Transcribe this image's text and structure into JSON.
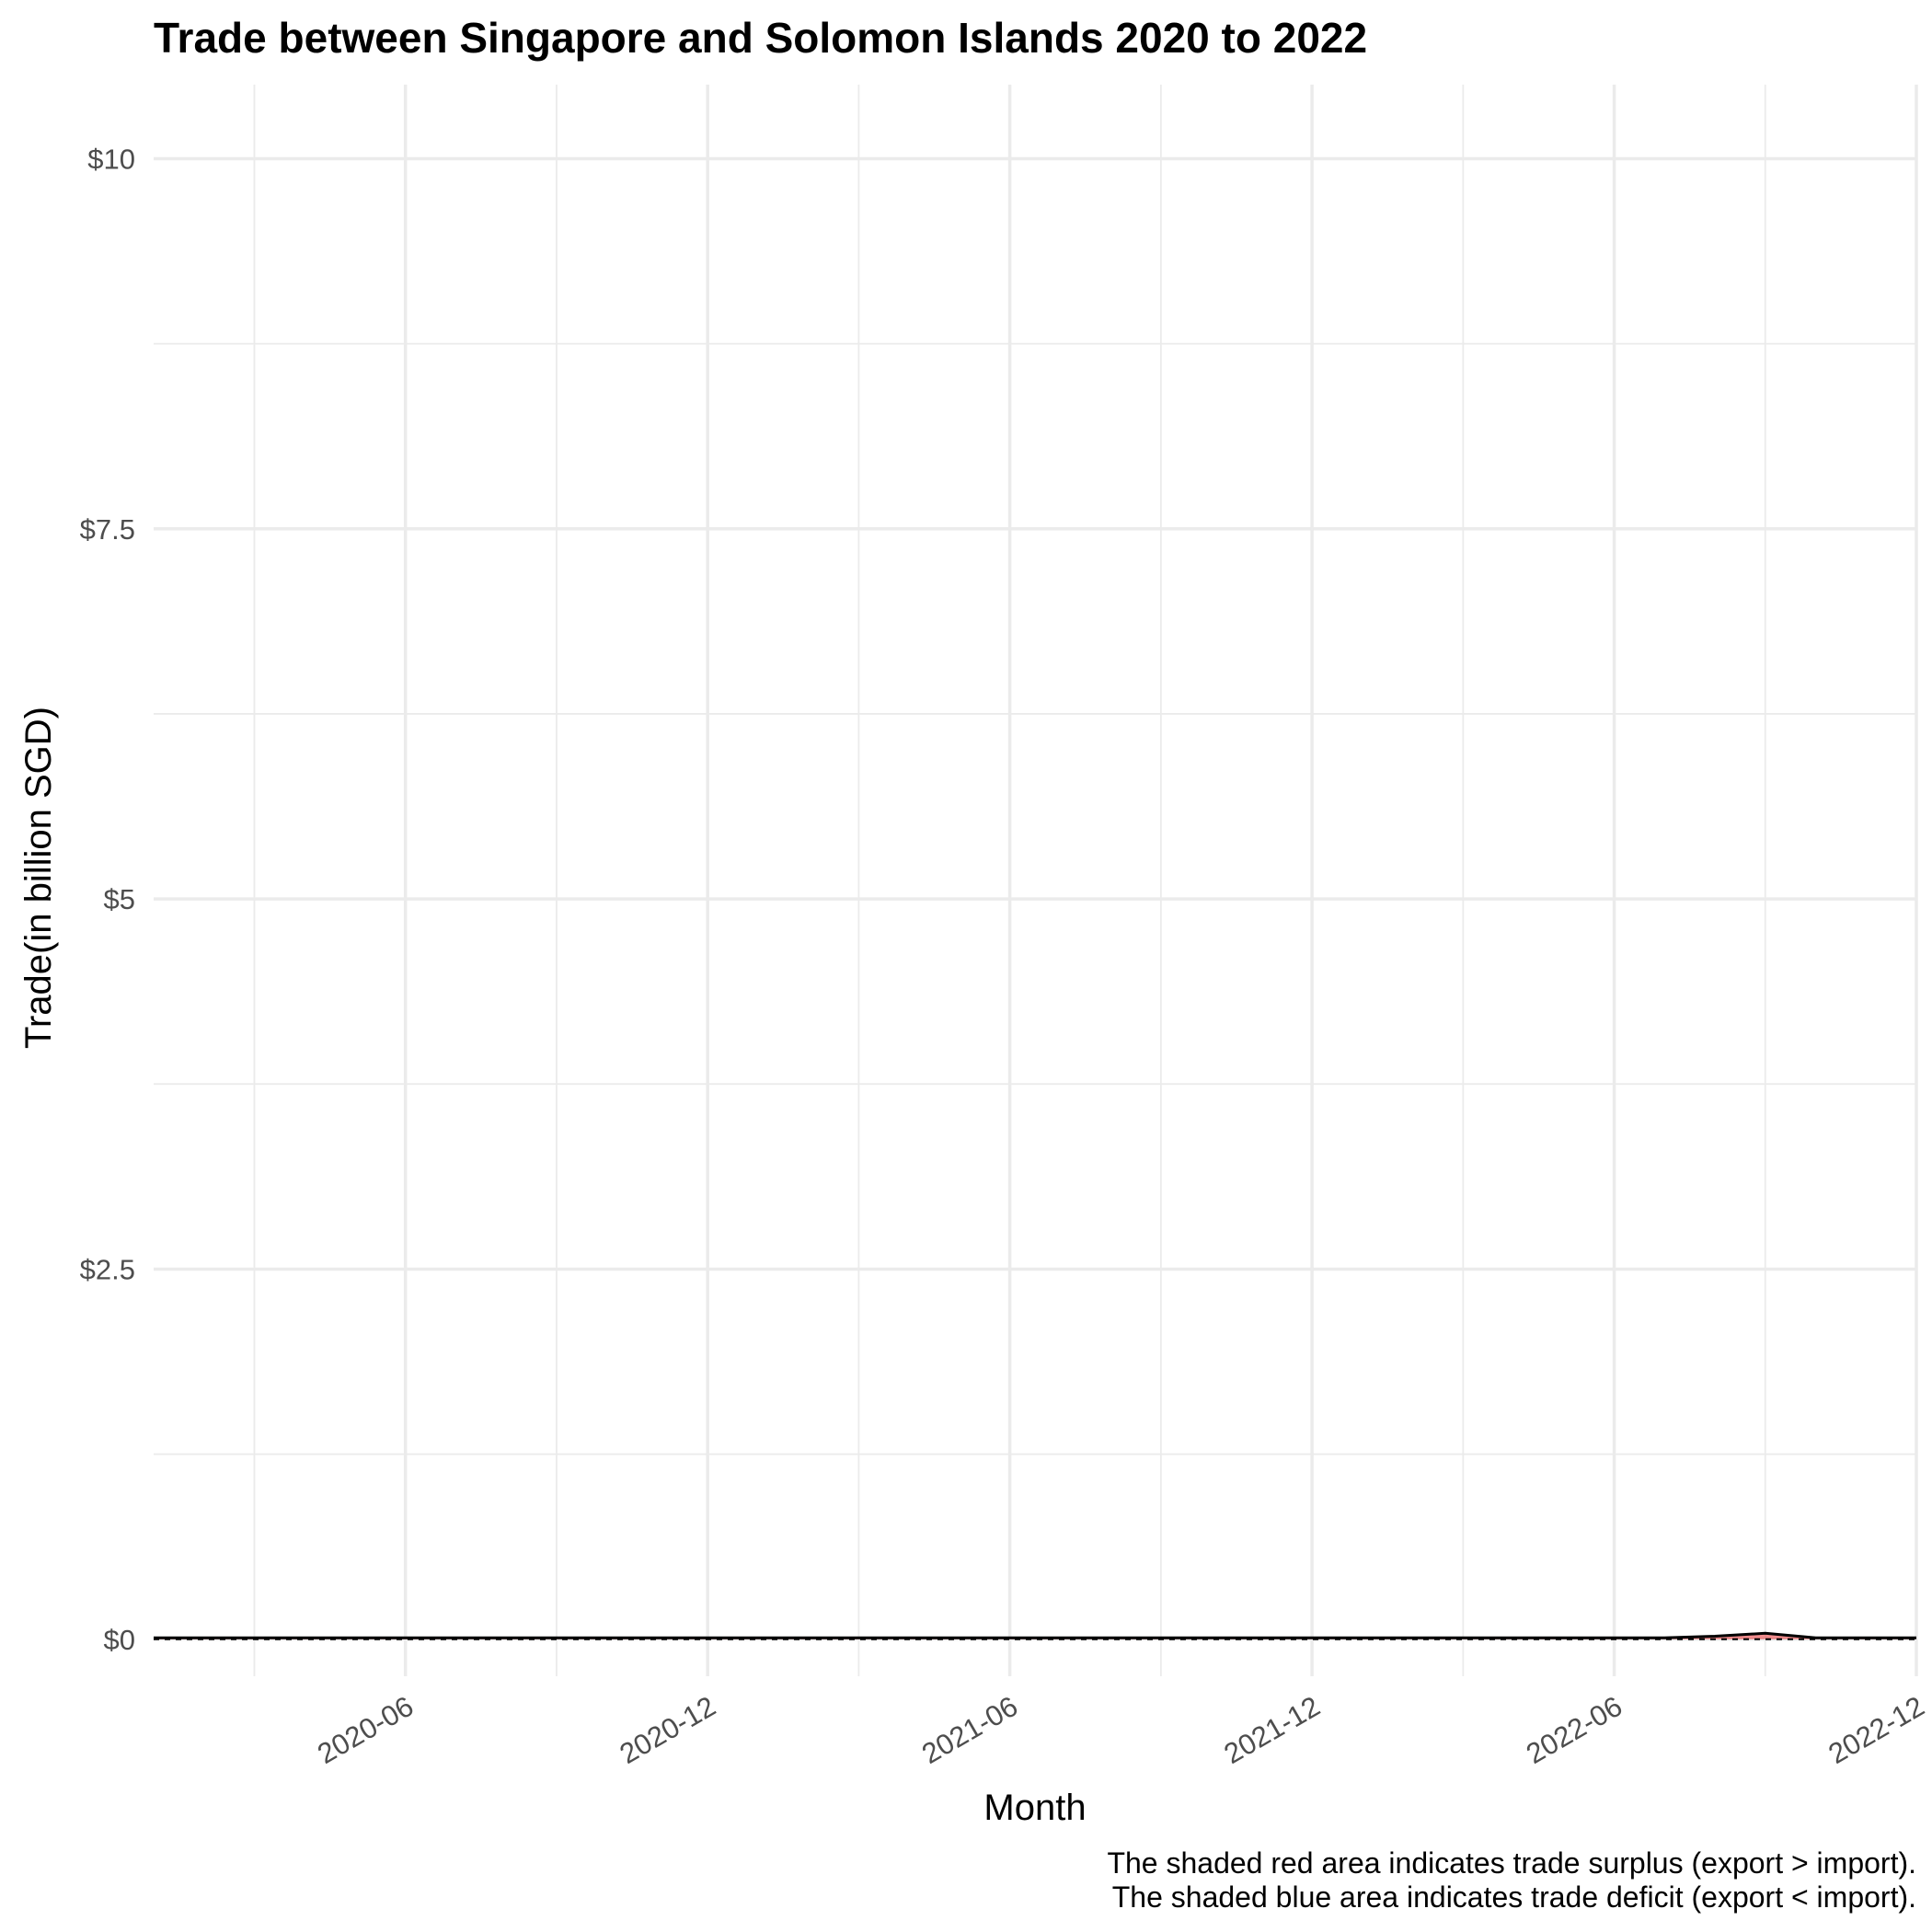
{
  "chart_data": {
    "type": "line",
    "title": "Trade between Singapore and Solomon Islands  2020 to 2022",
    "xlabel": "Month",
    "ylabel": "Trade(in billion SGD)",
    "ylim": [
      -0.25,
      10.5
    ],
    "y_ticks": [
      {
        "value": 0,
        "label": "$0"
      },
      {
        "value": 2.5,
        "label": "$2.5"
      },
      {
        "value": 5,
        "label": "$5"
      },
      {
        "value": 7.5,
        "label": "$7.5"
      },
      {
        "value": 10,
        "label": "$10"
      }
    ],
    "x_range": [
      "2020-01",
      "2022-12"
    ],
    "x_ticks": [
      "2020-06",
      "2020-12",
      "2021-06",
      "2021-12",
      "2022-06",
      "2022-12"
    ],
    "x_minor_ticks": [
      "2020-03",
      "2020-09",
      "2021-03",
      "2021-09",
      "2022-03",
      "2022-09"
    ],
    "grid": true,
    "legend": "none",
    "caption_lines": [
      "The shaded red area indicates trade surplus (export > import).",
      "The shaded blue area indicates trade deficit (export < import)."
    ],
    "months": [
      "2020-01",
      "2020-02",
      "2020-03",
      "2020-04",
      "2020-05",
      "2020-06",
      "2020-07",
      "2020-08",
      "2020-09",
      "2020-10",
      "2020-11",
      "2020-12",
      "2021-01",
      "2021-02",
      "2021-03",
      "2021-04",
      "2021-05",
      "2021-06",
      "2021-07",
      "2021-08",
      "2021-09",
      "2021-10",
      "2021-11",
      "2021-12",
      "2022-01",
      "2022-02",
      "2022-03",
      "2022-04",
      "2022-05",
      "2022-06",
      "2022-07",
      "2022-08",
      "2022-09",
      "2022-10",
      "2022-11",
      "2022-12"
    ],
    "series": [
      {
        "name": "",
        "style": "solid",
        "color": "#000000",
        "values": [
          0.01,
          0.01,
          0.01,
          0.01,
          0.01,
          0.01,
          0.01,
          0.01,
          0.01,
          0.01,
          0.01,
          0.01,
          0.01,
          0.01,
          0.01,
          0.01,
          0.01,
          0.01,
          0.01,
          0.01,
          0.01,
          0.01,
          0.01,
          0.01,
          0.01,
          0.01,
          0.01,
          0.01,
          0.01,
          0.01,
          0.01,
          0.02,
          0.04,
          0.01,
          0.01,
          0.01
        ]
      },
      {
        "name": "",
        "style": "dashed",
        "color": "#000000",
        "values": [
          0,
          0,
          0,
          0,
          0,
          0,
          0,
          0,
          0,
          0,
          0,
          0,
          0,
          0,
          0,
          0,
          0,
          0,
          0,
          0,
          0,
          0,
          0,
          0,
          0,
          0,
          0,
          0,
          0,
          0,
          0,
          0,
          0,
          0,
          0,
          0
        ]
      }
    ],
    "colors": {
      "surplus": "#e41a1c",
      "deficit": "#377eb8",
      "line": "#000000",
      "grid": "#ebebeb"
    }
  }
}
